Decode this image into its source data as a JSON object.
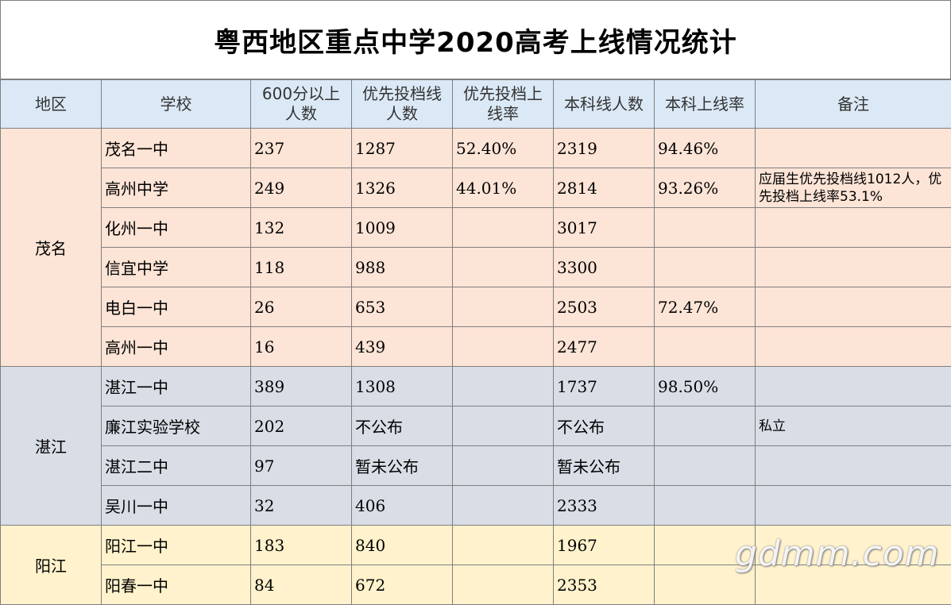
{
  "title": "粤西地区重点中学2020高考上线情况统计",
  "headers": [
    "地区",
    "学校",
    "600分以上人数",
    "优先投档线人数",
    "优先投档上线率",
    "本科线人数",
    "本科上线率",
    "备注"
  ],
  "regions": {
    "maoming": "茂名",
    "zhanjiang": "湛江",
    "yangjiang": "阳江"
  },
  "rows": [
    {
      "school": "茂名一中",
      "s600": "237",
      "priority": "1287",
      "priority_rate": "52.40%",
      "bachelor": "2319",
      "bachelor_rate": "94.46%",
      "note": ""
    },
    {
      "school": "高州中学",
      "s600": "249",
      "priority": "1326",
      "priority_rate": "44.01%",
      "bachelor": "2814",
      "bachelor_rate": "93.26%",
      "note": "应届生优先投档线1012人，优先投档上线率53.1%"
    },
    {
      "school": "化州一中",
      "s600": "132",
      "priority": "1009",
      "priority_rate": "",
      "bachelor": "3017",
      "bachelor_rate": "",
      "note": ""
    },
    {
      "school": "信宜中学",
      "s600": "118",
      "priority": "988",
      "priority_rate": "",
      "bachelor": "3300",
      "bachelor_rate": "",
      "note": ""
    },
    {
      "school": "电白一中",
      "s600": "26",
      "priority": "653",
      "priority_rate": "",
      "bachelor": "2503",
      "bachelor_rate": "72.47%",
      "note": ""
    },
    {
      "school": "高州一中",
      "s600": "16",
      "priority": "439",
      "priority_rate": "",
      "bachelor": "2477",
      "bachelor_rate": "",
      "note": ""
    },
    {
      "school": "湛江一中",
      "s600": "389",
      "priority": "1308",
      "priority_rate": "",
      "bachelor": "1737",
      "bachelor_rate": "98.50%",
      "note": ""
    },
    {
      "school": "廉江实验学校",
      "s600": "202",
      "priority": "不公布",
      "priority_rate": "",
      "bachelor": "不公布",
      "bachelor_rate": "",
      "note": "私立"
    },
    {
      "school": "湛江二中",
      "s600": "97",
      "priority": "暂未公布",
      "priority_rate": "",
      "bachelor": "暂未公布",
      "bachelor_rate": "",
      "note": ""
    },
    {
      "school": "吴川一中",
      "s600": "32",
      "priority": "406",
      "priority_rate": "",
      "bachelor": "2333",
      "bachelor_rate": "",
      "note": ""
    },
    {
      "school": "阳江一中",
      "s600": "183",
      "priority": "840",
      "priority_rate": "",
      "bachelor": "1967",
      "bachelor_rate": "",
      "note": ""
    },
    {
      "school": "阳春一中",
      "s600": "84",
      "priority": "672",
      "priority_rate": "",
      "bachelor": "2353",
      "bachelor_rate": "",
      "note": ""
    }
  ],
  "watermark": "gdmm.com"
}
